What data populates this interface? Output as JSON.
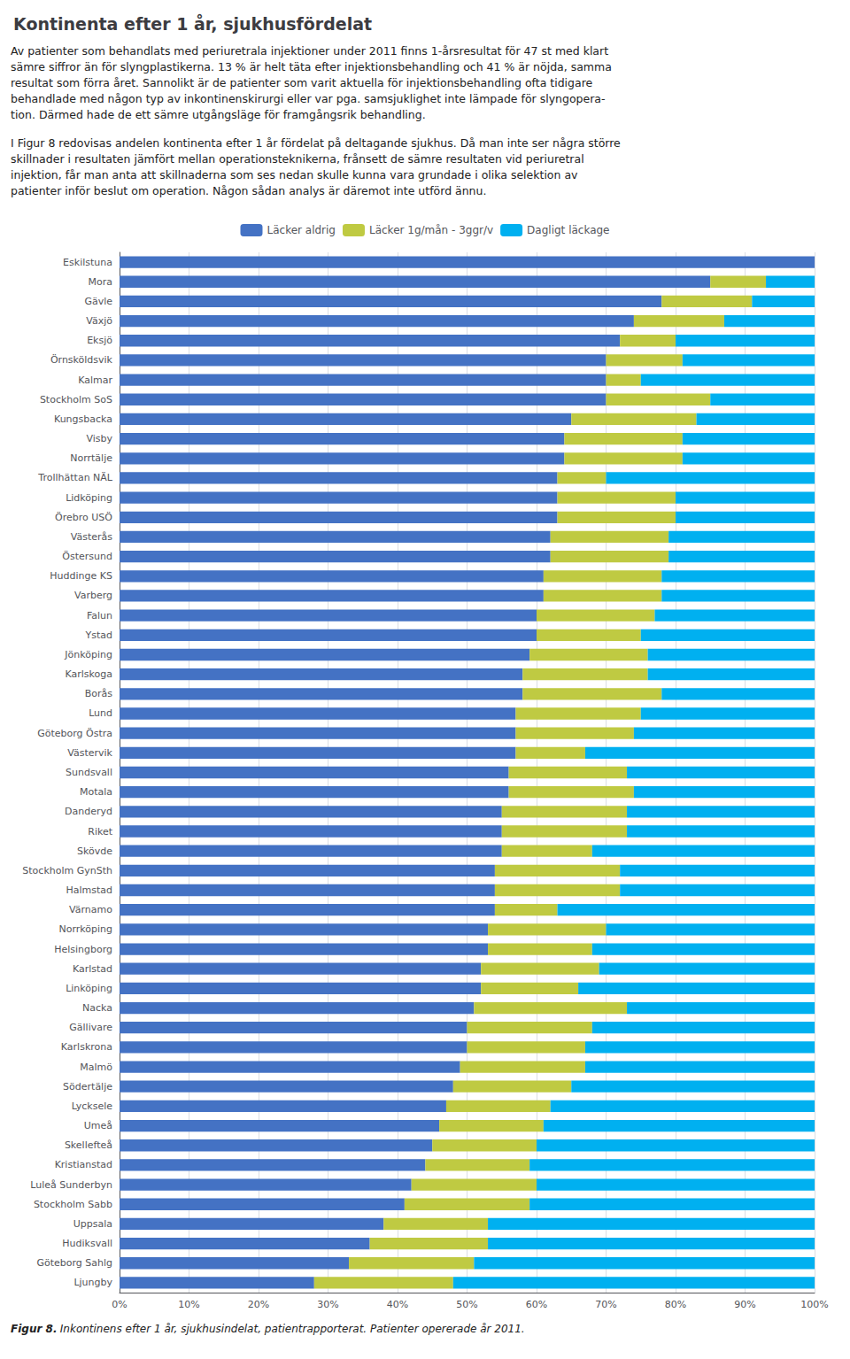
{
  "chart_data": {
    "type": "bar",
    "title": "Kontinenta efter 1 år, sjukhusfördelat",
    "annotations": [
      "Av patienter som behandlats med periuretrala injektioner under 2011 finns 1-årsresultat för 47 st med klart\nsämre siffror än för slyngplastikerna. 13 % är helt täta efter injektionsbehandling och 41 % är nöjda, samma\nresultat som förra året. Sannolikt är de patienter som varit aktuella för injektionsbehandling ofta tidigare\nbehandlade med någon typ av inkontinenskirurgi eller var pga. samsjuklighet inte lämpade för slyngopera-\ntion. Därmed hade de ett sämre utgångsläge för framgångsrik behandling.",
      "I Figur 8 redovisas andelen kontinenta efter 1 år fördelat på deltagande sjukhus. Då man inte ser några större\nskillnader i resultaten jämfört mellan operationsteknikerna, frånsett de sämre resultaten vid periuretral\ninjektion, får man anta att skillnaderna som ses nedan skulle kunna vara grundade i olika selektion av\npatienter inför beslut om operation. Någon sådan analys är däremot inte utförd ännu.",
      "Figur 8.",
      "Inkontinens efter 1 år, sjukhusindelat, patientrapporterat. Patienter opererade år 2011."
    ],
    "orientation": "horizontal",
    "stacked": true,
    "grid": true,
    "legend": "top",
    "categories": [
      "Eskilstuna",
      "Mora",
      "Gävle",
      "Växjö",
      "Eksjö",
      "Örnsköldsvik",
      "Kalmar",
      "Stockholm SoS",
      "Kungsbacka",
      "Visby",
      "Norrtälje",
      "Trollhättan NÄL",
      "Lidköping",
      "Örebro USÖ",
      "Västerås",
      "Östersund",
      "Huddinge KS",
      "Varberg",
      "Falun",
      "Ystad",
      "Jönköping",
      "Karlskoga",
      "Borås",
      "Lund",
      "Göteborg Östra",
      "Västervik",
      "Sundsvall",
      "Motala",
      "Danderyd",
      "Riket",
      "Skövde",
      "Stockholm GynSth",
      "Halmstad",
      "Värnamo",
      "Norrköping",
      "Helsingborg",
      "Karlstad",
      "Linköping",
      "Nacka",
      "Gällivare",
      "Karlskrona",
      "Malmö",
      "Södertälje",
      "Lycksele",
      "Umeå",
      "Skellefteå",
      "Kristianstad",
      "Luleå Sunderbyn",
      "Stockholm Sabb",
      "Uppsala",
      "Hudiksvall",
      "Göteborg Sahlg",
      "Ljungby"
    ],
    "series": [
      {
        "name": "Läcker aldrig",
        "color": "#4472C4",
        "values": [
          100,
          85,
          78,
          74,
          72,
          70,
          70,
          70,
          65,
          64,
          64,
          63,
          63,
          63,
          62,
          62,
          61,
          61,
          60,
          60,
          59,
          58,
          58,
          57,
          57,
          57,
          56,
          56,
          55,
          55,
          55,
          54,
          54,
          54,
          53,
          53,
          52,
          52,
          51,
          50,
          50,
          49,
          48,
          47,
          46,
          45,
          44,
          42,
          41,
          38,
          36,
          33,
          28
        ]
      },
      {
        "name": "Läcker 1g/mån - 3ggr/v",
        "color": "#BFCA42",
        "values": [
          0,
          8,
          13,
          13,
          8,
          11,
          5,
          15,
          18,
          17,
          17,
          7,
          17,
          17,
          17,
          17,
          17,
          17,
          17,
          15,
          17,
          18,
          20,
          18,
          17,
          10,
          17,
          18,
          18,
          18,
          13,
          18,
          18,
          9,
          17,
          15,
          17,
          14,
          22,
          18,
          17,
          18,
          17,
          15,
          15,
          15,
          15,
          18,
          18,
          15,
          17,
          18,
          20
        ]
      },
      {
        "name": "Dagligt läckage",
        "color": "#00B0F0",
        "values": [
          0,
          7,
          9,
          13,
          20,
          19,
          25,
          15,
          17,
          19,
          19,
          30,
          20,
          20,
          21,
          21,
          22,
          22,
          23,
          25,
          24,
          24,
          22,
          25,
          26,
          33,
          27,
          26,
          27,
          27,
          32,
          28,
          28,
          37,
          30,
          32,
          31,
          34,
          27,
          32,
          33,
          33,
          35,
          38,
          39,
          40,
          41,
          40,
          41,
          47,
          47,
          49,
          52
        ]
      }
    ],
    "xlim": [
      0,
      100
    ],
    "xticks": [
      {
        "value": 0,
        "label": "0%"
      },
      {
        "value": 10,
        "label": "10%"
      },
      {
        "value": 20,
        "label": "20%"
      },
      {
        "value": 30,
        "label": "30%"
      },
      {
        "value": 40,
        "label": "40%"
      },
      {
        "value": 50,
        "label": "50%"
      },
      {
        "value": 60,
        "label": "60%"
      },
      {
        "value": 70,
        "label": "70%"
      },
      {
        "value": 80,
        "label": "80%"
      },
      {
        "value": 90,
        "label": "90%"
      },
      {
        "value": 100,
        "label": "100%"
      }
    ]
  }
}
